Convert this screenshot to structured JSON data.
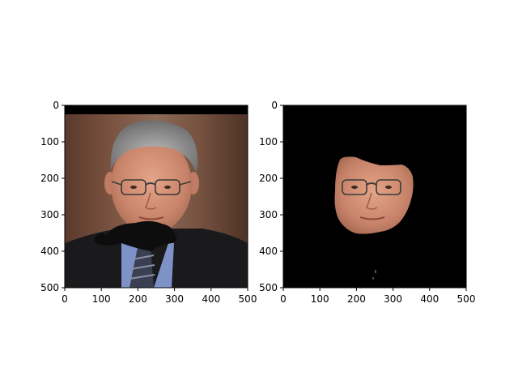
{
  "figure": {
    "background": "#ffffff"
  },
  "chart_data": [
    {
      "type": "image",
      "title": "",
      "xlabel": "",
      "ylabel": "",
      "xlim": [
        0,
        500
      ],
      "ylim": [
        500,
        0
      ],
      "xticks": [
        0,
        100,
        200,
        300,
        400,
        500
      ],
      "yticks": [
        0,
        100,
        200,
        300,
        400,
        500
      ],
      "xtick_labels": [
        "0",
        "100",
        "200",
        "300",
        "400",
        "500"
      ],
      "ytick_labels": [
        "0",
        "100",
        "200",
        "300",
        "400",
        "500"
      ],
      "content": "photo-portrait",
      "colors": {
        "background_wall": "#6e4a3a",
        "top_band": "#000000",
        "suit": "#1a1a1c",
        "shirt": "#7f92c8",
        "tie": "#3a3f52",
        "skin": "#d08c70",
        "hair": "#8e8e8e",
        "mustache": "#0d0d0d"
      }
    },
    {
      "type": "image",
      "title": "",
      "xlabel": "",
      "ylabel": "",
      "xlim": [
        0,
        500
      ],
      "ylim": [
        500,
        0
      ],
      "xticks": [
        0,
        100,
        200,
        300,
        400,
        500
      ],
      "yticks": [
        0,
        100,
        200,
        300,
        400,
        500
      ],
      "xtick_labels": [
        "0",
        "100",
        "200",
        "300",
        "400",
        "500"
      ],
      "ytick_labels": [
        "0",
        "100",
        "200",
        "300",
        "400",
        "500"
      ],
      "content": "masked-face",
      "colors": {
        "background": "#000000",
        "skin": "#d08c70"
      }
    }
  ]
}
